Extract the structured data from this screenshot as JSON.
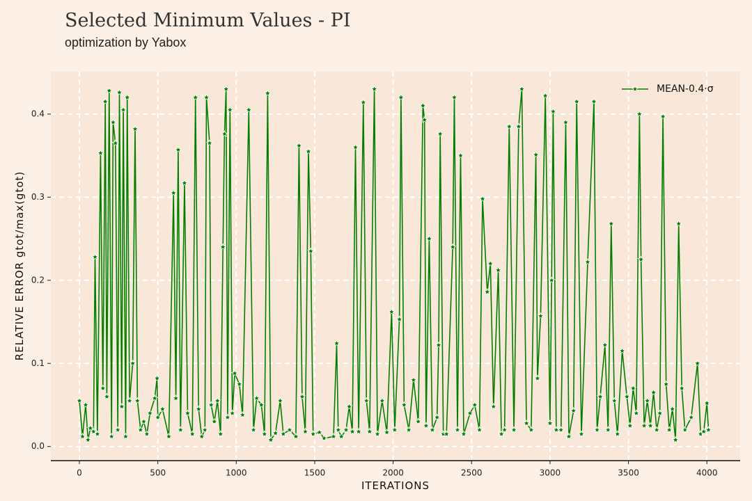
{
  "chart_data": {
    "type": "line",
    "title": "Selected Minimum Values - PI",
    "subtitle": "optimization by Yabox",
    "x_label": "ITERATIONS",
    "y_label": "RELATIVE ERROR gtot/max(gtot)",
    "xlim": [
      -182,
      4212
    ],
    "ylim": [
      -0.017,
      0.451
    ],
    "xticks": [
      0,
      500,
      1000,
      1500,
      2000,
      2500,
      3000,
      3500,
      4000
    ],
    "yticks": [
      {
        "value": 0,
        "label": "0.0"
      },
      0.1,
      0.2,
      0.3,
      0.4
    ],
    "grid": true,
    "legend": "upper right",
    "x": [
      0,
      20,
      40,
      55,
      70,
      90,
      100,
      115,
      135,
      150,
      165,
      175,
      190,
      205,
      215,
      230,
      245,
      255,
      270,
      280,
      295,
      305,
      320,
      340,
      355,
      370,
      390,
      410,
      430,
      450,
      480,
      495,
      500,
      530,
      570,
      600,
      615,
      630,
      645,
      670,
      690,
      720,
      740,
      760,
      780,
      800,
      810,
      830,
      840,
      860,
      880,
      900,
      915,
      925,
      935,
      945,
      960,
      975,
      990,
      1020,
      1040,
      1080,
      1110,
      1130,
      1160,
      1180,
      1200,
      1220,
      1250,
      1280,
      1300,
      1340,
      1380,
      1400,
      1420,
      1440,
      1460,
      1475,
      1490,
      1530,
      1560,
      1620,
      1640,
      1650,
      1670,
      1700,
      1720,
      1740,
      1760,
      1780,
      1810,
      1830,
      1850,
      1880,
      1900,
      1930,
      1960,
      1990,
      2010,
      2040,
      2050,
      2070,
      2100,
      2130,
      2160,
      2190,
      2200,
      2210,
      2230,
      2250,
      2280,
      2290,
      2300,
      2320,
      2340,
      2380,
      2390,
      2410,
      2430,
      2450,
      2490,
      2520,
      2550,
      2570,
      2600,
      2620,
      2640,
      2670,
      2690,
      2710,
      2740,
      2770,
      2800,
      2820,
      2850,
      2880,
      2910,
      2920,
      2940,
      2970,
      3000,
      3010,
      3020,
      3040,
      3070,
      3100,
      3120,
      3150,
      3170,
      3200,
      3240,
      3280,
      3300,
      3320,
      3350,
      3370,
      3390,
      3410,
      3430,
      3460,
      3490,
      3510,
      3530,
      3550,
      3570,
      3580,
      3600,
      3620,
      3640,
      3660,
      3680,
      3700,
      3720,
      3740,
      3760,
      3780,
      3800,
      3820,
      3840,
      3860,
      3900,
      3940,
      3960,
      3980,
      4000,
      4010
    ],
    "series": [
      {
        "name": "MEAN-0.4·σ",
        "color": "#008000",
        "values": [
          0.055,
          0.012,
          0.05,
          0.008,
          0.022,
          0.018,
          0.228,
          0.015,
          0.353,
          0.07,
          0.415,
          0.06,
          0.428,
          0.012,
          0.39,
          0.365,
          0.02,
          0.426,
          0.048,
          0.405,
          0.012,
          0.42,
          0.055,
          0.1,
          0.382,
          0.055,
          0.02,
          0.03,
          0.015,
          0.04,
          0.058,
          0.082,
          0.035,
          0.045,
          0.012,
          0.305,
          0.058,
          0.357,
          0.02,
          0.317,
          0.04,
          0.015,
          0.42,
          0.045,
          0.012,
          0.02,
          0.42,
          0.365,
          0.05,
          0.03,
          0.055,
          0.015,
          0.24,
          0.376,
          0.43,
          0.035,
          0.405,
          0.04,
          0.088,
          0.075,
          0.038,
          0.405,
          0.02,
          0.058,
          0.05,
          0.015,
          0.425,
          0.008,
          0.016,
          0.055,
          0.015,
          0.02,
          0.012,
          0.362,
          0.06,
          0.018,
          0.355,
          0.235,
          0.015,
          0.017,
          0.01,
          0.012,
          0.124,
          0.02,
          0.012,
          0.02,
          0.048,
          0.018,
          0.36,
          0.018,
          0.414,
          0.055,
          0.018,
          0.43,
          0.015,
          0.055,
          0.017,
          0.162,
          0.02,
          0.153,
          0.42,
          0.05,
          0.02,
          0.08,
          0.03,
          0.41,
          0.393,
          0.025,
          0.25,
          0.02,
          0.035,
          0.122,
          0.376,
          0.015,
          0.015,
          0.24,
          0.42,
          0.02,
          0.35,
          0.015,
          0.04,
          0.05,
          0.02,
          0.298,
          0.186,
          0.22,
          0.048,
          0.212,
          0.015,
          0.02,
          0.385,
          0.02,
          0.385,
          0.43,
          0.028,
          0.02,
          0.351,
          0.082,
          0.157,
          0.422,
          0.028,
          0.2,
          0.403,
          0.02,
          0.02,
          0.39,
          0.012,
          0.043,
          0.415,
          0.015,
          0.222,
          0.415,
          0.02,
          0.06,
          0.122,
          0.02,
          0.268,
          0.055,
          0.015,
          0.115,
          0.06,
          0.025,
          0.07,
          0.04,
          0.4,
          0.225,
          0.025,
          0.055,
          0.025,
          0.065,
          0.02,
          0.04,
          0.397,
          0.075,
          0.02,
          0.045,
          0.008,
          0.268,
          0.07,
          0.02,
          0.035,
          0.1,
          0.015,
          0.018,
          0.052,
          0.02
        ]
      }
    ]
  }
}
